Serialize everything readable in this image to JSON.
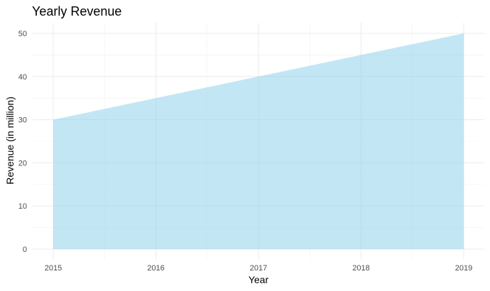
{
  "chart_data": {
    "type": "area",
    "title": "Yearly Revenue",
    "xlabel": "Year",
    "ylabel": "Revenue (in million)",
    "x": [
      2015,
      2016,
      2017,
      2018,
      2019
    ],
    "series": [
      {
        "values": [
          30,
          35,
          40,
          45,
          50
        ]
      }
    ],
    "xlim": [
      2015,
      2019
    ],
    "ylim": [
      0,
      50
    ],
    "x_ticks": [
      "2015",
      "2016",
      "2017",
      "2018",
      "2019"
    ],
    "y_ticks": [
      "0",
      "10",
      "20",
      "30",
      "40",
      "50"
    ],
    "grid": true,
    "legend": "none",
    "fill_color": "#87ceeb",
    "fill_opacity": 0.5
  }
}
